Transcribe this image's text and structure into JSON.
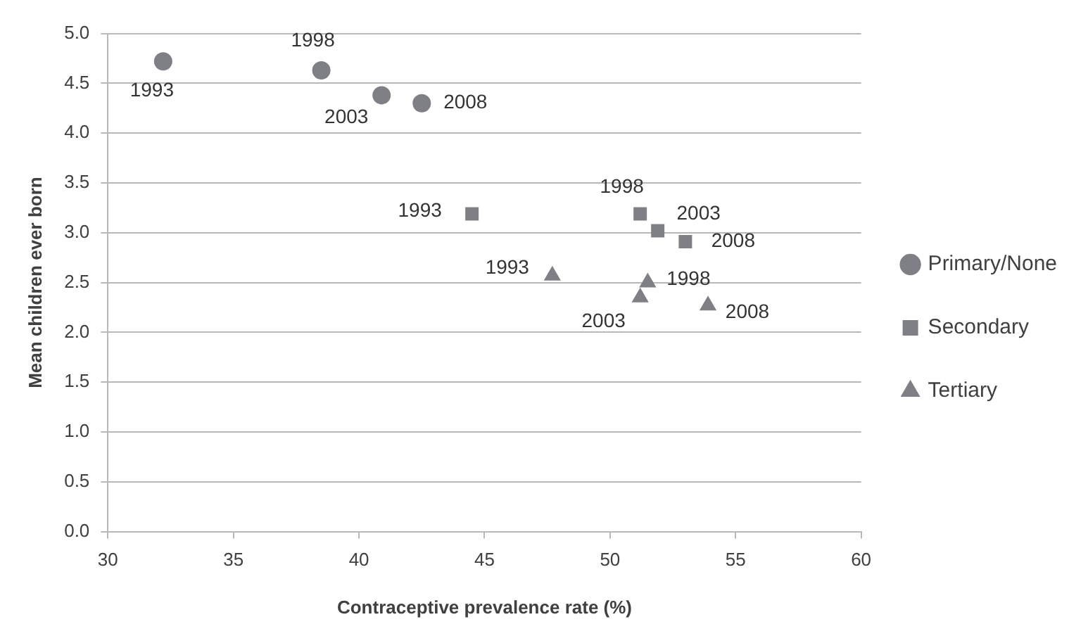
{
  "chart_data": {
    "type": "scatter",
    "xlabel": "Contraceptive prevalence rate (%)",
    "ylabel": "Mean children ever born",
    "xlim": [
      30,
      60
    ],
    "xticks": [
      30,
      35,
      40,
      45,
      50,
      55,
      60
    ],
    "ylim": [
      0,
      5
    ],
    "yticks": [
      {
        "value": 0,
        "label": "0.0"
      },
      {
        "value": 0.5,
        "label": "0.5"
      },
      {
        "value": 1,
        "label": "1.0"
      },
      {
        "value": 1.5,
        "label": "1.5"
      },
      {
        "value": 2,
        "label": "2.0"
      },
      {
        "value": 2.5,
        "label": "2.5"
      },
      {
        "value": 3,
        "label": "3.0"
      },
      {
        "value": 3.5,
        "label": "3.5"
      },
      {
        "value": 4,
        "label": "4.0"
      },
      {
        "value": 4.5,
        "label": "4.5"
      },
      {
        "value": 5,
        "label": "5.0"
      }
    ],
    "grid": "y",
    "legend": "right",
    "series": [
      {
        "name": "Primary/None",
        "color": "#7f7f86",
        "marker": "circle",
        "x": [
          32.2,
          38.5,
          40.9,
          42.5
        ],
        "values": [
          4.72,
          4.63,
          4.38,
          4.3
        ]
      },
      {
        "name": "Secondary",
        "color": "#7f7f86",
        "marker": "square",
        "x": [
          44.5,
          51.2,
          51.9,
          53.0
        ],
        "values": [
          3.19,
          3.19,
          3.02,
          2.91
        ]
      },
      {
        "name": "Tertiary",
        "color": "#7f7f86",
        "marker": "triangle",
        "x": [
          47.7,
          51.5,
          51.2,
          53.9
        ],
        "values": [
          2.57,
          2.5,
          2.35,
          2.27
        ]
      }
    ],
    "annotations": [
      {
        "text": "1993",
        "x": 32.2,
        "y": 4.72
      },
      {
        "text": "1998",
        "x": 38.5,
        "y": 4.63
      },
      {
        "text": "2003",
        "x": 40.9,
        "y": 4.38
      },
      {
        "text": "2008",
        "x": 42.5,
        "y": 4.3
      },
      {
        "text": "1993",
        "x": 44.5,
        "y": 3.19
      },
      {
        "text": "1998",
        "x": 51.2,
        "y": 3.19
      },
      {
        "text": "2003",
        "x": 51.9,
        "y": 3.02
      },
      {
        "text": "2008",
        "x": 53.0,
        "y": 2.91
      },
      {
        "text": "1993",
        "x": 47.7,
        "y": 2.57
      },
      {
        "text": "1998",
        "x": 51.5,
        "y": 2.5
      },
      {
        "text": "2003",
        "x": 51.2,
        "y": 2.35
      },
      {
        "text": "2008",
        "x": 53.9,
        "y": 2.27
      }
    ]
  }
}
